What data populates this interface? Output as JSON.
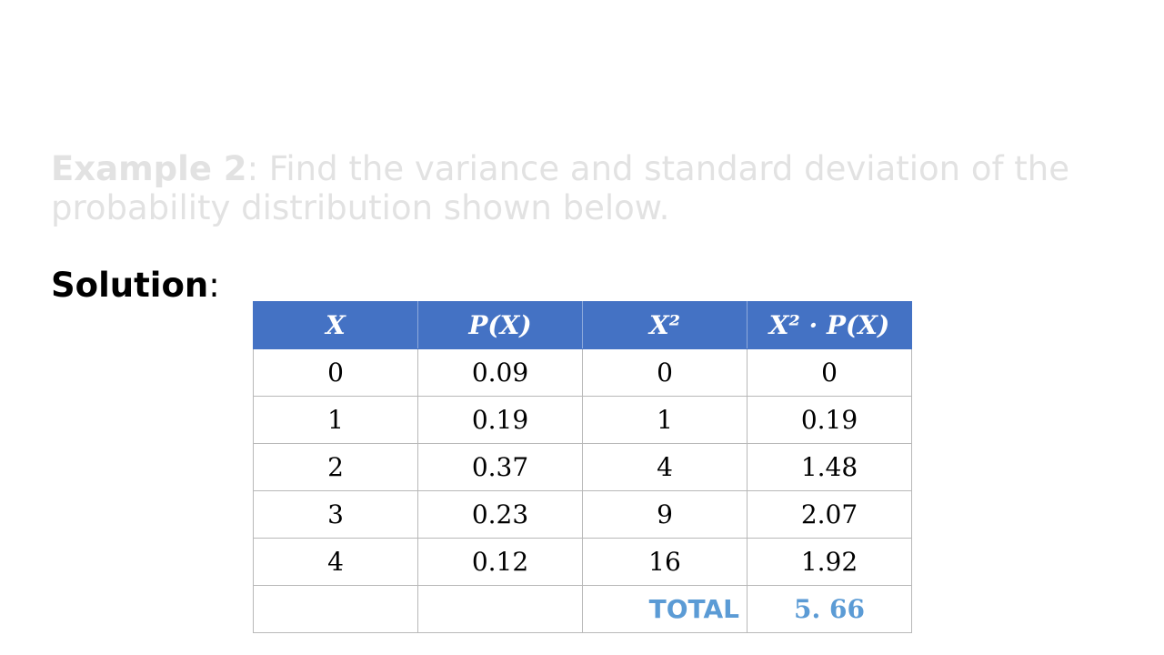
{
  "prompt": {
    "label": "Example 2",
    "colon": ":",
    "text": " Find the variance and standard deviation of the probability distribution shown below."
  },
  "solution": {
    "label": "Solution",
    "colon": ":"
  },
  "table": {
    "headers": [
      "X",
      "P(X)",
      "X²",
      "X² · P(X)"
    ],
    "rows": [
      [
        "0",
        "0.09",
        "0",
        "0"
      ],
      [
        "1",
        "0.19",
        "1",
        "0.19"
      ],
      [
        "2",
        "0.37",
        "4",
        "1.48"
      ],
      [
        "3",
        "0.23",
        "9",
        "2.07"
      ],
      [
        "4",
        "0.12",
        "16",
        "1.92"
      ]
    ],
    "total_label": "TOTAL",
    "total_value": "5. 66"
  },
  "colors": {
    "header_bg": "#4472c4",
    "total_text": "#5b9bd5",
    "prompt_text": "#e2e2e2"
  }
}
